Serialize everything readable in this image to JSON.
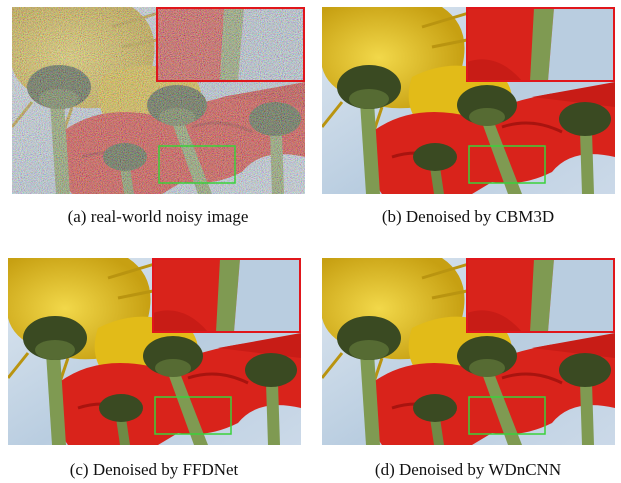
{
  "figure": {
    "panels": [
      {
        "id": "a",
        "caption": "(a)  real-world noisy image",
        "noisy": true
      },
      {
        "id": "b",
        "caption": "(b)  Denoised by CBM3D",
        "noisy": false
      },
      {
        "id": "c",
        "caption": "(c)  Denoised by FFDNet",
        "noisy": false
      },
      {
        "id": "d",
        "caption": "(d)  Denoised by WDnCNN",
        "noisy": false
      }
    ],
    "colors": {
      "sky": "#b9cde0",
      "sky_light": "#dfe8f1",
      "yellow": "#e6c21a",
      "yellow_dark": "#b99410",
      "red": "#d9231b",
      "red_dark": "#a8140f",
      "stem": "#7f9a52",
      "stem_dark": "#566b33",
      "flower_center": "#3a4a22",
      "inset_border": "#e0161b",
      "roi_box": "#3ad13a"
    }
  }
}
